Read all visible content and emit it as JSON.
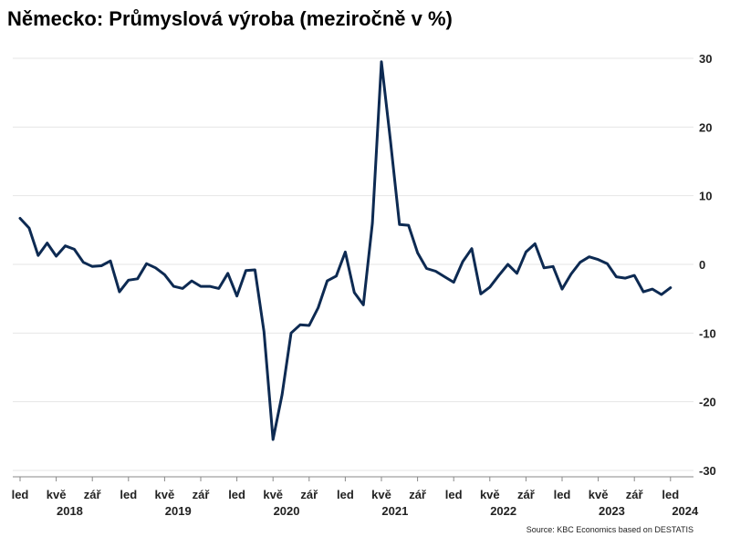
{
  "chart_data": {
    "type": "line",
    "title": "Německo: Průmyslová výroba (meziročně v %)",
    "source": "Source: KBC Economics based on DESTATIS",
    "y_axis_side": "right",
    "ylim": [
      -30,
      30
    ],
    "y_ticks": [
      30,
      20,
      10,
      0,
      -10,
      -20,
      -30
    ],
    "grid": true,
    "line_color": "#0d2a52",
    "month_tick_labels": [
      "led",
      "kvě",
      "zář"
    ],
    "x_start": "2018-01",
    "year_labels": [
      "2018",
      "2019",
      "2020",
      "2021",
      "2022",
      "2023",
      "2024"
    ],
    "series": [
      {
        "values": [
          6.7,
          5.3,
          1.3,
          3.1,
          1.2,
          2.7,
          2.2,
          0.3,
          -0.3,
          -0.2,
          0.5,
          -4.0,
          -2.3,
          -2.1,
          0.1,
          -0.5,
          -1.5,
          -3.2,
          -3.5,
          -2.4,
          -3.2,
          -3.2,
          -3.5,
          -1.3,
          -4.6,
          -0.9,
          -0.8,
          -9.8,
          -25.5,
          -19.0,
          -10.0,
          -8.8,
          -8.9,
          -6.3,
          -2.4,
          -1.7,
          1.8,
          -4.1,
          -5.9,
          6.0,
          29.5,
          18.0,
          5.8,
          5.7,
          1.7,
          -0.6,
          -1.0,
          -1.8,
          -2.6,
          0.4,
          2.3,
          -4.3,
          -3.3,
          -1.6,
          0.0,
          -1.3,
          1.8,
          3.0,
          -0.5,
          -0.3,
          -3.6,
          -1.4,
          0.3,
          1.1,
          0.7,
          0.1,
          -1.8,
          -2.0,
          -1.6,
          -4.0,
          -3.6,
          -4.4,
          -3.4
        ]
      }
    ]
  }
}
